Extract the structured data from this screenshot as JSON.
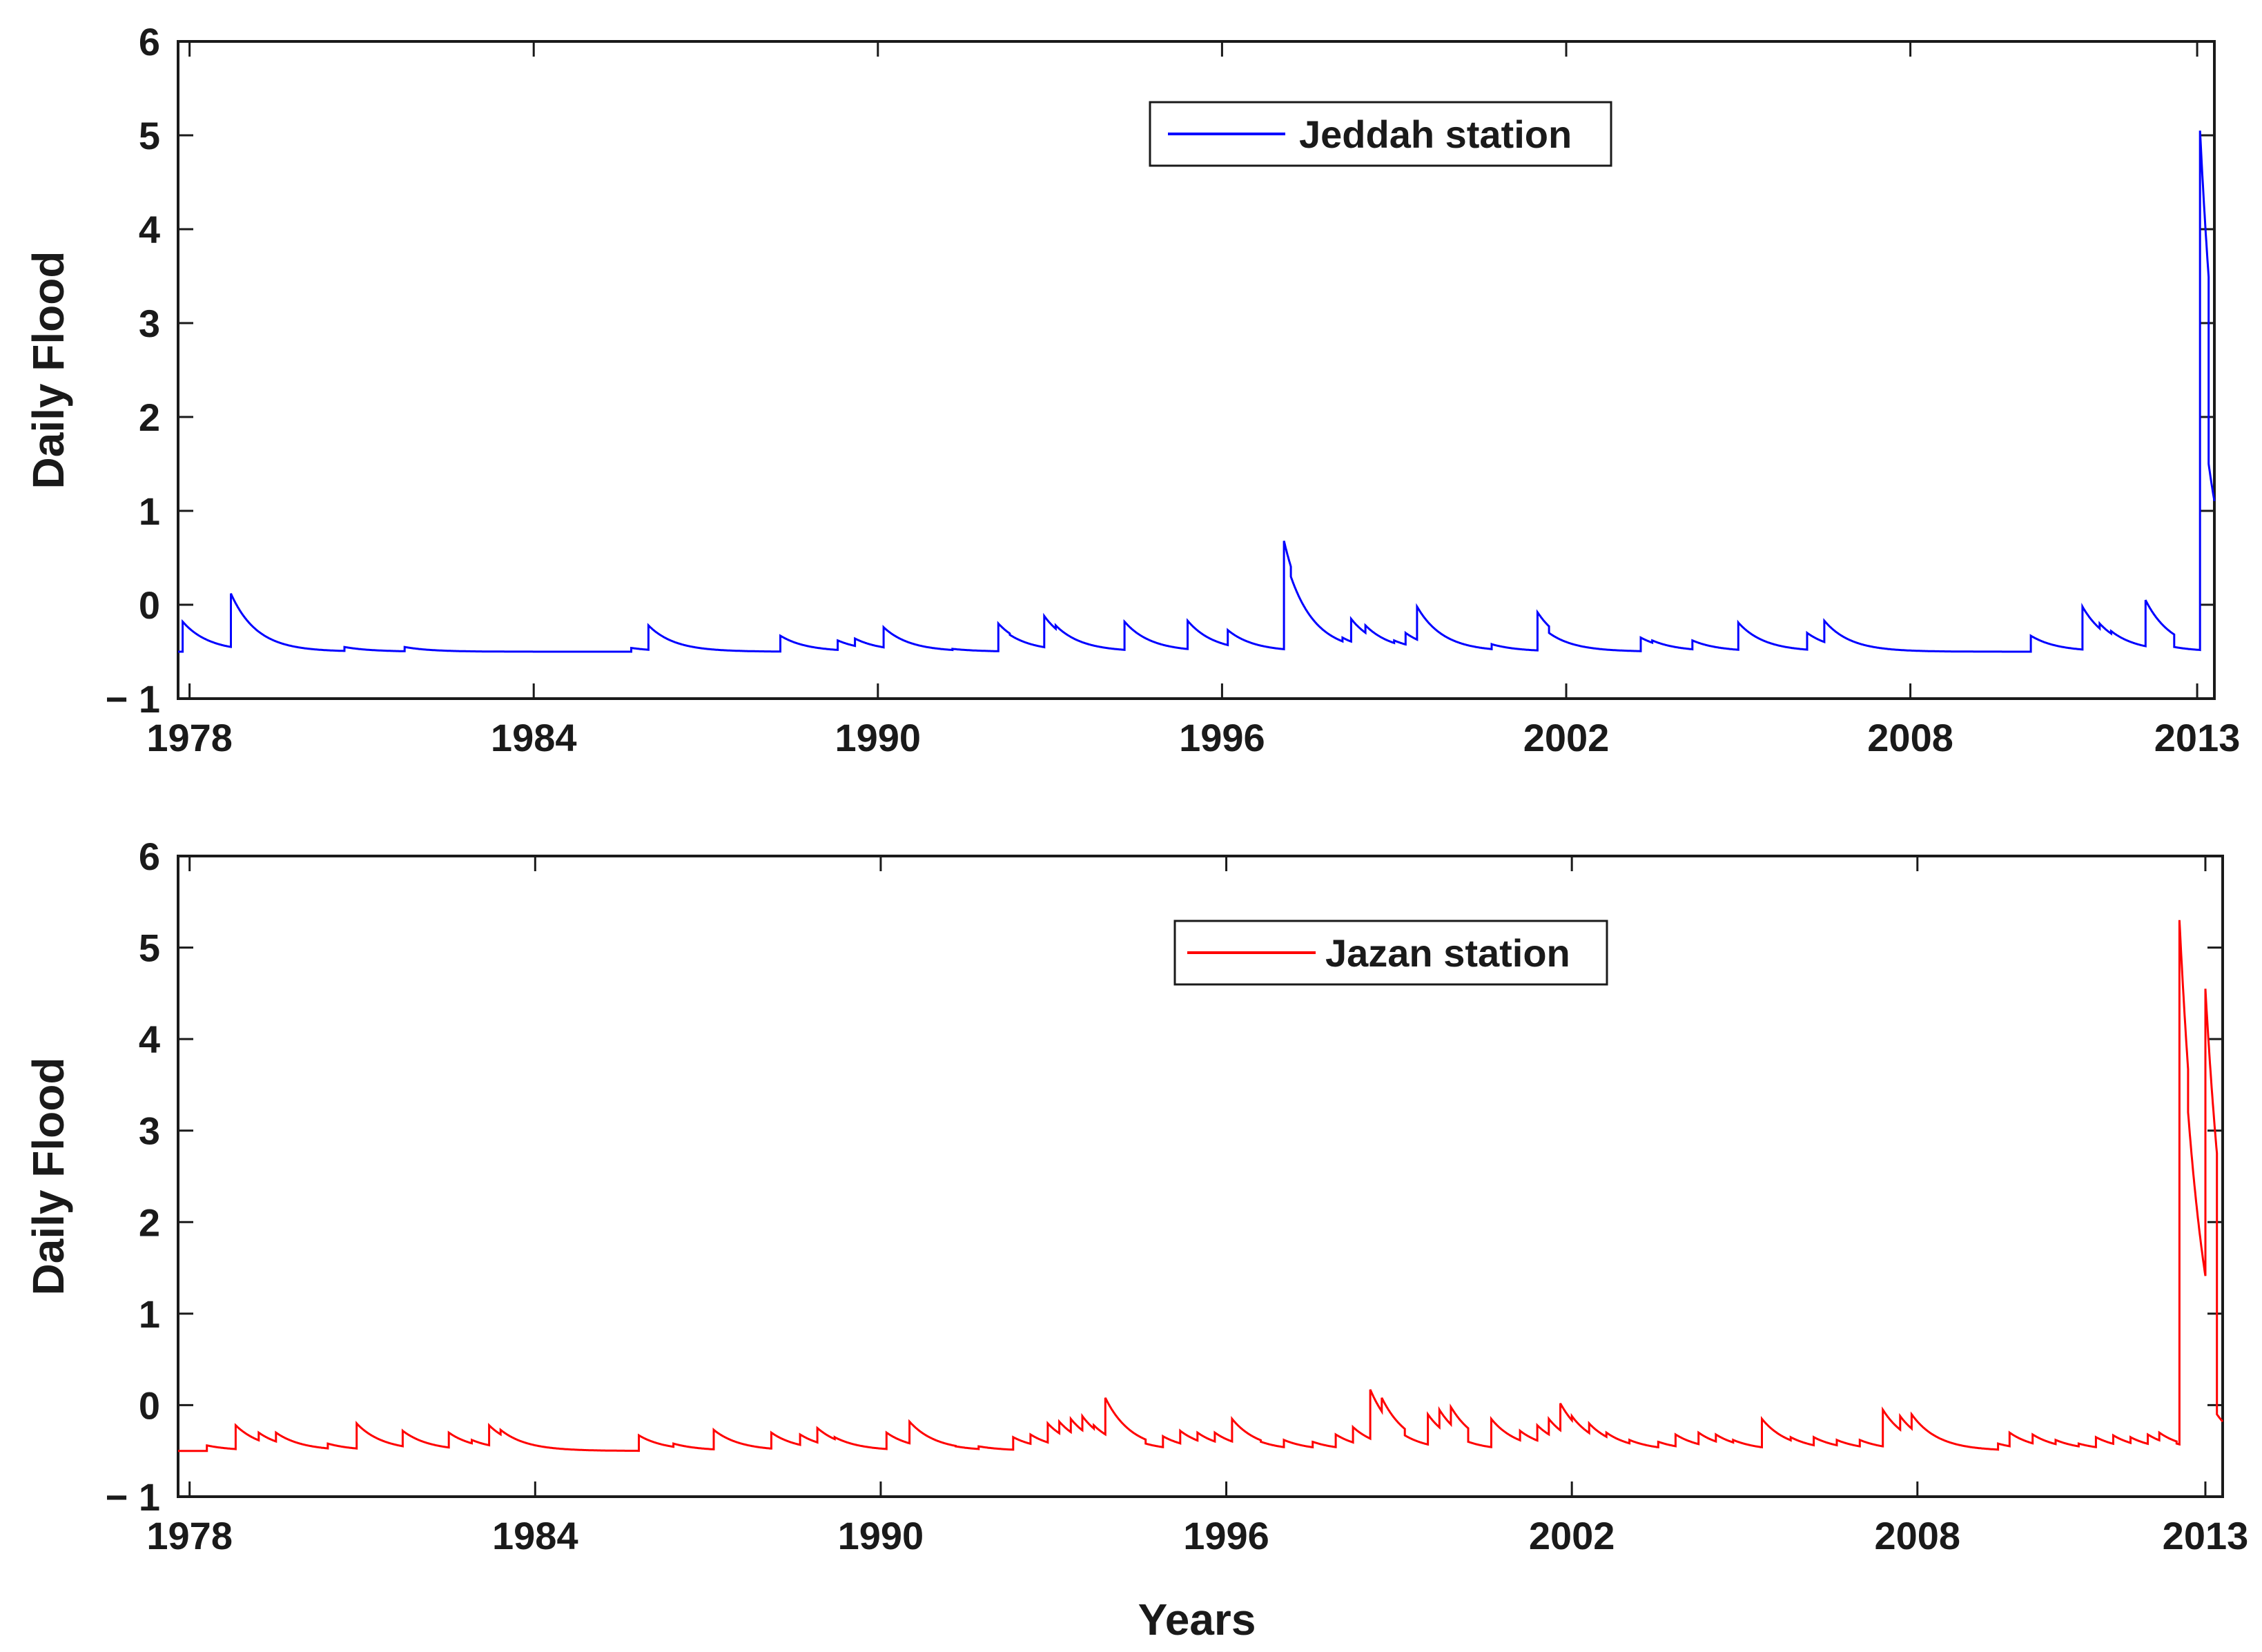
{
  "x_label": "Years",
  "chart_data": [
    {
      "type": "line",
      "ylabel": "Daily Flood",
      "ylim": [
        -1,
        6
      ],
      "xlim": [
        1977.8,
        2013.3
      ],
      "yticks": [
        -1,
        0,
        1,
        2,
        3,
        4,
        5,
        6
      ],
      "ytick_labels": [
        "− 1",
        "0",
        "1",
        "2",
        "3",
        "4",
        "5",
        "6"
      ],
      "xticks": [
        1978,
        1984,
        1990,
        1996,
        2002,
        2008,
        2013
      ],
      "xtick_labels": [
        "1978",
        "1984",
        "1990",
        "1996",
        "2002",
        "2008",
        "2013"
      ],
      "grid": false,
      "legend_position": "top-center",
      "baseline": -0.5,
      "series": [
        {
          "name": "Jeddah station",
          "color": "#0000ff",
          "events": [
            [
              1977.88,
              -0.18
            ],
            [
              1978.72,
              0.12
            ],
            [
              1980.7,
              -0.45
            ],
            [
              1981.75,
              -0.45
            ],
            [
              1985.7,
              -0.46
            ],
            [
              1986.0,
              -0.22
            ],
            [
              1988.3,
              -0.33
            ],
            [
              1989.3,
              -0.38
            ],
            [
              1989.6,
              -0.36
            ],
            [
              1990.1,
              -0.24
            ],
            [
              1991.3,
              -0.47
            ],
            [
              1992.1,
              -0.2
            ],
            [
              1992.3,
              -0.32
            ],
            [
              1992.9,
              -0.12
            ],
            [
              1993.1,
              -0.22
            ],
            [
              1994.3,
              -0.18
            ],
            [
              1995.4,
              -0.17
            ],
            [
              1996.1,
              -0.27
            ],
            [
              1997.08,
              0.68
            ],
            [
              1997.2,
              0.3
            ],
            [
              1998.1,
              -0.35
            ],
            [
              1998.25,
              -0.15
            ],
            [
              1998.5,
              -0.22
            ],
            [
              1999.0,
              -0.38
            ],
            [
              1999.2,
              -0.3
            ],
            [
              1999.4,
              -0.02
            ],
            [
              2000.7,
              -0.42
            ],
            [
              2001.5,
              -0.08
            ],
            [
              2001.7,
              -0.3
            ],
            [
              2003.3,
              -0.35
            ],
            [
              2003.5,
              -0.38
            ],
            [
              2004.2,
              -0.38
            ],
            [
              2005.0,
              -0.19
            ],
            [
              2006.2,
              -0.3
            ],
            [
              2006.5,
              -0.17
            ],
            [
              2010.1,
              -0.33
            ],
            [
              2011.0,
              -0.02
            ],
            [
              2011.3,
              -0.2
            ],
            [
              2011.5,
              -0.28
            ],
            [
              2012.1,
              0.05
            ],
            [
              2012.6,
              -0.45
            ],
            [
              2013.05,
              5.05
            ],
            [
              2013.2,
              1.5
            ]
          ]
        }
      ]
    },
    {
      "type": "line",
      "ylabel": "Daily Flood",
      "xlabel": "Years",
      "ylim": [
        -1,
        6
      ],
      "xlim": [
        1977.8,
        2013.3
      ],
      "yticks": [
        -1,
        0,
        1,
        2,
        3,
        4,
        5,
        6
      ],
      "ytick_labels": [
        "− 1",
        "0",
        "1",
        "2",
        "3",
        "4",
        "5",
        "6"
      ],
      "xticks": [
        1978,
        1984,
        1990,
        1996,
        2002,
        2008,
        2013
      ],
      "xtick_labels": [
        "1978",
        "1984",
        "1990",
        "1996",
        "2002",
        "2008",
        "2013"
      ],
      "grid": false,
      "legend_position": "top-center",
      "baseline": -0.5,
      "series": [
        {
          "name": "Jazan station",
          "color": "#ff0000",
          "events": [
            [
              1978.3,
              -0.44
            ],
            [
              1978.8,
              -0.22
            ],
            [
              1979.2,
              -0.3
            ],
            [
              1979.5,
              -0.3
            ],
            [
              1980.4,
              -0.42
            ],
            [
              1980.9,
              -0.2
            ],
            [
              1981.7,
              -0.28
            ],
            [
              1982.5,
              -0.3
            ],
            [
              1982.9,
              -0.38
            ],
            [
              1983.2,
              -0.22
            ],
            [
              1983.4,
              -0.27
            ],
            [
              1985.8,
              -0.33
            ],
            [
              1986.4,
              -0.42
            ],
            [
              1987.1,
              -0.27
            ],
            [
              1988.1,
              -0.3
            ],
            [
              1988.6,
              -0.32
            ],
            [
              1988.9,
              -0.25
            ],
            [
              1989.2,
              -0.35
            ],
            [
              1990.1,
              -0.3
            ],
            [
              1990.5,
              -0.18
            ],
            [
              1991.3,
              -0.45
            ],
            [
              1991.7,
              -0.45
            ],
            [
              1992.3,
              -0.35
            ],
            [
              1992.6,
              -0.32
            ],
            [
              1992.9,
              -0.2
            ],
            [
              1993.1,
              -0.18
            ],
            [
              1993.3,
              -0.15
            ],
            [
              1993.5,
              -0.12
            ],
            [
              1993.7,
              -0.22
            ],
            [
              1993.9,
              0.08
            ],
            [
              1994.6,
              -0.42
            ],
            [
              1994.9,
              -0.34
            ],
            [
              1995.2,
              -0.28
            ],
            [
              1995.5,
              -0.3
            ],
            [
              1995.8,
              -0.3
            ],
            [
              1996.1,
              -0.15
            ],
            [
              1996.6,
              -0.4
            ],
            [
              1997.0,
              -0.38
            ],
            [
              1997.5,
              -0.4
            ],
            [
              1997.9,
              -0.32
            ],
            [
              1998.2,
              -0.24
            ],
            [
              1998.5,
              0.17
            ],
            [
              1998.7,
              0.08
            ],
            [
              1999.1,
              -0.33
            ],
            [
              1999.5,
              -0.1
            ],
            [
              1999.7,
              -0.05
            ],
            [
              1999.9,
              -0.02
            ],
            [
              2000.2,
              -0.4
            ],
            [
              2000.6,
              -0.15
            ],
            [
              2001.1,
              -0.28
            ],
            [
              2001.4,
              -0.22
            ],
            [
              2001.6,
              -0.15
            ],
            [
              2001.8,
              0.02
            ],
            [
              2002.0,
              -0.12
            ],
            [
              2002.3,
              -0.2
            ],
            [
              2002.6,
              -0.3
            ],
            [
              2003.0,
              -0.38
            ],
            [
              2003.5,
              -0.4
            ],
            [
              2003.8,
              -0.32
            ],
            [
              2004.2,
              -0.3
            ],
            [
              2004.5,
              -0.32
            ],
            [
              2004.8,
              -0.38
            ],
            [
              2005.3,
              -0.15
            ],
            [
              2005.8,
              -0.35
            ],
            [
              2006.2,
              -0.35
            ],
            [
              2006.6,
              -0.38
            ],
            [
              2007.0,
              -0.38
            ],
            [
              2007.4,
              -0.05
            ],
            [
              2007.7,
              -0.12
            ],
            [
              2007.9,
              -0.1
            ],
            [
              2009.4,
              -0.42
            ],
            [
              2009.6,
              -0.3
            ],
            [
              2010.0,
              -0.32
            ],
            [
              2010.4,
              -0.38
            ],
            [
              2010.8,
              -0.42
            ],
            [
              2011.1,
              -0.35
            ],
            [
              2011.4,
              -0.33
            ],
            [
              2011.7,
              -0.35
            ],
            [
              2012.0,
              -0.32
            ],
            [
              2012.2,
              -0.3
            ],
            [
              2012.5,
              -0.42
            ],
            [
              2012.55,
              5.3
            ],
            [
              2012.7,
              3.2
            ],
            [
              2013.0,
              4.55
            ],
            [
              2013.2,
              -0.1
            ]
          ]
        }
      ]
    }
  ]
}
